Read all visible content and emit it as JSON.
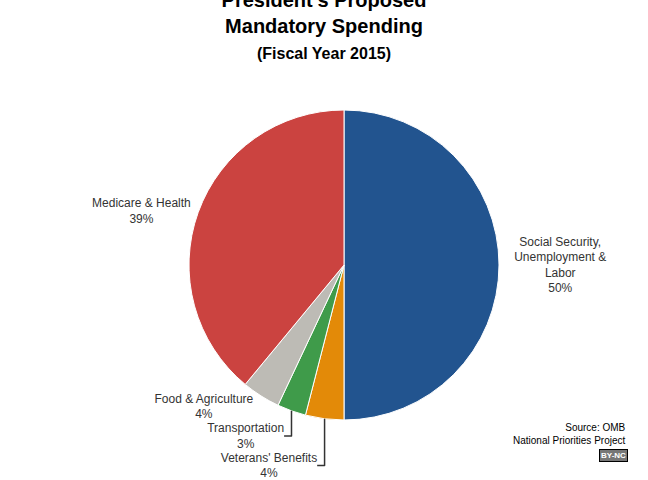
{
  "chart_data": {
    "type": "pie",
    "title": "President's Proposed Mandatory Spending",
    "subtitle": "(Fiscal Year 2015)",
    "categories": [
      "Social Security, Unemployment & Labor",
      "Veterans' Benefits",
      "Transportation",
      "Food & Agriculture",
      "Medicare & Health"
    ],
    "values": [
      50,
      4,
      3,
      4,
      39
    ],
    "value_labels": [
      "50%",
      "4%",
      "3%",
      "4%",
      "39%"
    ],
    "colors": [
      "#22548f",
      "#e38a08",
      "#3f9b4a",
      "#bdbbb5",
      "#cb4340"
    ],
    "data_labels": true,
    "source": "Source: OMB",
    "credit": "National Priorities Project",
    "license": "BY-NC"
  }
}
